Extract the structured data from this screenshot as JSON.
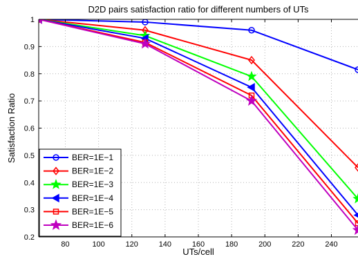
{
  "chart_data": {
    "type": "line",
    "title": "D2D pairs satisfaction ratio for different numbers of UTs",
    "xlabel": "UTs/cell",
    "ylabel": "Satisfaction Ratio",
    "xlim": [
      64,
      256
    ],
    "ylim": [
      0.2,
      1.0
    ],
    "xticks": [
      80,
      100,
      120,
      140,
      160,
      180,
      200,
      220,
      240
    ],
    "yticks": [
      0.2,
      0.3,
      0.4,
      0.5,
      0.6,
      0.7,
      0.8,
      0.9,
      1
    ],
    "grid": true,
    "legend_position": "lower-left",
    "series": [
      {
        "name": "BER=1E−1",
        "color": "#0000ff",
        "marker": "circle",
        "x": [
          64,
          128,
          192,
          256
        ],
        "y": [
          1.0,
          0.99,
          0.96,
          0.815
        ]
      },
      {
        "name": "BER=1E−2",
        "color": "#ff0000",
        "marker": "diamond",
        "x": [
          64,
          128,
          192,
          256
        ],
        "y": [
          1.0,
          0.96,
          0.85,
          0.455
        ]
      },
      {
        "name": "BER=1E−3",
        "color": "#00ff00",
        "marker": "star",
        "x": [
          64,
          128,
          192,
          256
        ],
        "y": [
          1.0,
          0.94,
          0.79,
          0.34
        ]
      },
      {
        "name": "BER=1E−4",
        "color": "#0000ff",
        "marker": "triangle-left",
        "x": [
          64,
          128,
          192,
          256
        ],
        "y": [
          1.0,
          0.93,
          0.75,
          0.28
        ]
      },
      {
        "name": "BER=1E−5",
        "color": "#ff0000",
        "marker": "square",
        "x": [
          64,
          128,
          192,
          256
        ],
        "y": [
          1.0,
          0.915,
          0.72,
          0.25
        ]
      },
      {
        "name": "BER=1E−6",
        "color": "#bf00bf",
        "marker": "pentagram",
        "x": [
          64,
          128,
          192,
          256
        ],
        "y": [
          1.0,
          0.91,
          0.7,
          0.225
        ]
      }
    ]
  }
}
